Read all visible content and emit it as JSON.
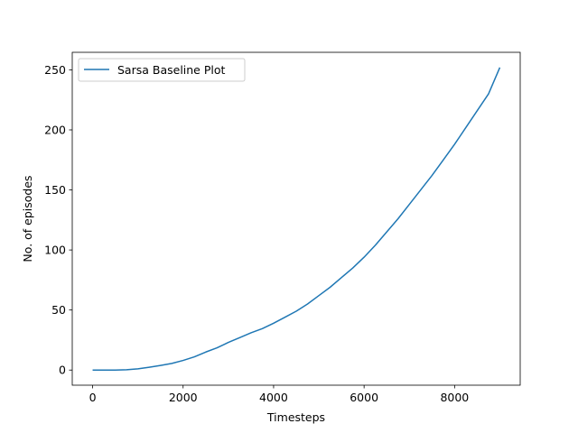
{
  "chart_data": {
    "type": "line",
    "title": "",
    "xlabel": "Timesteps",
    "ylabel": "No. of episodes",
    "xlim": [
      -450,
      9450
    ],
    "ylim": [
      -12.6,
      264.6
    ],
    "xticks": [
      0,
      2000,
      4000,
      6000,
      8000
    ],
    "yticks": [
      0,
      50,
      100,
      150,
      200,
      250
    ],
    "grid": false,
    "legend": {
      "location": "upper-left",
      "entries": [
        "Sarsa Baseline Plot"
      ]
    },
    "series": [
      {
        "name": "Sarsa Baseline Plot",
        "color": "#1f77b4",
        "x": [
          0,
          250,
          500,
          750,
          1000,
          1250,
          1500,
          1750,
          2000,
          2250,
          2500,
          2750,
          3000,
          3250,
          3500,
          3750,
          4000,
          4250,
          4500,
          4750,
          5000,
          5250,
          5500,
          5750,
          6000,
          6250,
          6500,
          6750,
          7000,
          7250,
          7500,
          7750,
          8000,
          8250,
          8500,
          8750,
          9000
        ],
        "y": [
          0,
          0,
          0,
          0.3,
          1,
          2.3,
          3.8,
          5.5,
          8,
          11,
          15,
          18.5,
          23,
          27,
          31,
          34.5,
          39,
          44,
          49,
          55,
          62,
          69,
          77,
          85,
          94,
          104,
          115,
          126,
          138,
          150,
          162,
          175,
          188,
          202,
          216,
          230,
          252
        ]
      }
    ]
  }
}
